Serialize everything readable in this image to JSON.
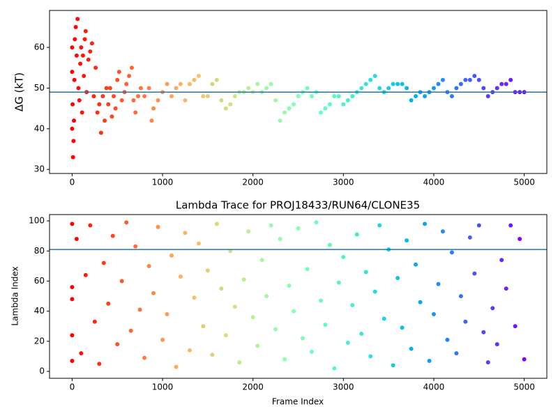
{
  "chart_data": [
    {
      "type": "scatter",
      "ylabel": "ΔG (kT)",
      "colormap": "rainbow_r",
      "axhline": 49,
      "axhline_color": "#1f77b4",
      "x": [
        0,
        0,
        0,
        5,
        10,
        15,
        20,
        25,
        30,
        40,
        50,
        60,
        70,
        80,
        90,
        100,
        110,
        120,
        130,
        140,
        150,
        160,
        180,
        200,
        220,
        240,
        260,
        280,
        300,
        320,
        340,
        360,
        380,
        400,
        420,
        440,
        460,
        480,
        500,
        520,
        550,
        580,
        600,
        630,
        660,
        680,
        700,
        730,
        760,
        800,
        850,
        880,
        900,
        950,
        1000,
        1050,
        1100,
        1150,
        1200,
        1250,
        1300,
        1350,
        1400,
        1450,
        1500,
        1550,
        1600,
        1650,
        1700,
        1750,
        1800,
        1850,
        1900,
        1950,
        2000,
        2050,
        2100,
        2150,
        2200,
        2250,
        2300,
        2350,
        2400,
        2450,
        2500,
        2550,
        2600,
        2650,
        2700,
        2750,
        2800,
        2850,
        2900,
        2950,
        3000,
        3050,
        3100,
        3150,
        3200,
        3250,
        3300,
        3350,
        3400,
        3450,
        3500,
        3550,
        3600,
        3650,
        3700,
        3750,
        3800,
        3850,
        3900,
        3950,
        4000,
        4050,
        4100,
        4150,
        4200,
        4250,
        4300,
        4350,
        4400,
        4450,
        4500,
        4550,
        4600,
        4650,
        4700,
        4750,
        4800,
        4850,
        4900,
        4950,
        5000
      ],
      "values": [
        60,
        54,
        40,
        46,
        33,
        37,
        42,
        52,
        62,
        65,
        58,
        67,
        50,
        47,
        56,
        60,
        44,
        58,
        53,
        62,
        64,
        49,
        57,
        59,
        61,
        48,
        55,
        44,
        46,
        39,
        48,
        42,
        50,
        46,
        50,
        43,
        48,
        45,
        52,
        54,
        47,
        49,
        51,
        53,
        55,
        47,
        44,
        48,
        50,
        48,
        50,
        42,
        45,
        47,
        49,
        51,
        48,
        50,
        51,
        47,
        51,
        52,
        53,
        48,
        48,
        51,
        52,
        47,
        45,
        46,
        48,
        49,
        49,
        50,
        49,
        51,
        49,
        50,
        51,
        47,
        42,
        44,
        45,
        46,
        48,
        49,
        50,
        48,
        49,
        44,
        45,
        46,
        48,
        48,
        46,
        47,
        48,
        49,
        50,
        51,
        52,
        53,
        50,
        49,
        50,
        51,
        51,
        51,
        50,
        47,
        48,
        49,
        48,
        49,
        50,
        51,
        52,
        49,
        48,
        50,
        51,
        52,
        52,
        53,
        52,
        50,
        48,
        49,
        50,
        51,
        51,
        52,
        49,
        49,
        49
      ],
      "xlim": [
        -250,
        5250
      ],
      "ylim": [
        29,
        69.1
      ],
      "xticks": [
        0,
        1000,
        2000,
        3000,
        4000,
        5000
      ],
      "yticks": [
        30,
        40,
        50,
        60
      ]
    },
    {
      "type": "scatter",
      "title": "Lambda Trace for PROJ18433/RUN64/CLONE35",
      "xlabel": "Frame Index",
      "ylabel": "Lambda Index",
      "colormap": "rainbow_r",
      "axhline": 81,
      "axhline_color": "#1f77b4",
      "x": [
        0,
        0,
        0,
        0,
        0,
        50,
        100,
        150,
        200,
        250,
        300,
        350,
        400,
        450,
        500,
        550,
        600,
        650,
        700,
        750,
        800,
        850,
        900,
        950,
        1000,
        1050,
        1100,
        1150,
        1200,
        1250,
        1300,
        1350,
        1400,
        1450,
        1500,
        1550,
        1600,
        1650,
        1700,
        1750,
        1800,
        1850,
        1900,
        1950,
        2000,
        2050,
        2100,
        2150,
        2200,
        2250,
        2300,
        2350,
        2400,
        2450,
        2500,
        2550,
        2600,
        2650,
        2700,
        2750,
        2800,
        2850,
        2900,
        2950,
        3000,
        3050,
        3100,
        3150,
        3200,
        3250,
        3300,
        3350,
        3400,
        3450,
        3500,
        3550,
        3600,
        3650,
        3700,
        3750,
        3800,
        3850,
        3900,
        3950,
        4000,
        4050,
        4100,
        4150,
        4200,
        4250,
        4300,
        4350,
        4400,
        4450,
        4500,
        4550,
        4600,
        4650,
        4700,
        4750,
        4800,
        4850,
        4900,
        4950,
        5000
      ],
      "values": [
        98,
        56,
        48,
        24,
        7,
        88,
        12,
        64,
        97,
        33,
        5,
        72,
        45,
        90,
        18,
        60,
        99,
        27,
        83,
        41,
        9,
        70,
        52,
        96,
        21,
        38,
        77,
        3,
        63,
        92,
        14,
        49,
        85,
        30,
        67,
        11,
        98,
        55,
        24,
        80,
        43,
        6,
        61,
        93,
        36,
        17,
        74,
        50,
        97,
        28,
        88,
        8,
        57,
        40,
        95,
        22,
        68,
        13,
        99,
        47,
        31,
        84,
        2,
        59,
        76,
        19,
        44,
        91,
        25,
        66,
        10,
        53,
        97,
        35,
        81,
        4,
        62,
        29,
        87,
        15,
        71,
        46,
        98,
        7,
        38,
        58,
        93,
        21,
        79,
        12,
        50,
        33,
        89,
        65,
        97,
        26,
        6,
        42,
        18,
        74,
        55,
        97,
        30,
        88,
        8
      ],
      "xlim": [
        -250,
        5250
      ],
      "ylim": [
        -4.6,
        104.2
      ],
      "xticks": [
        0,
        1000,
        2000,
        3000,
        4000,
        5000
      ],
      "yticks": [
        0,
        20,
        40,
        60,
        80,
        100
      ]
    }
  ]
}
